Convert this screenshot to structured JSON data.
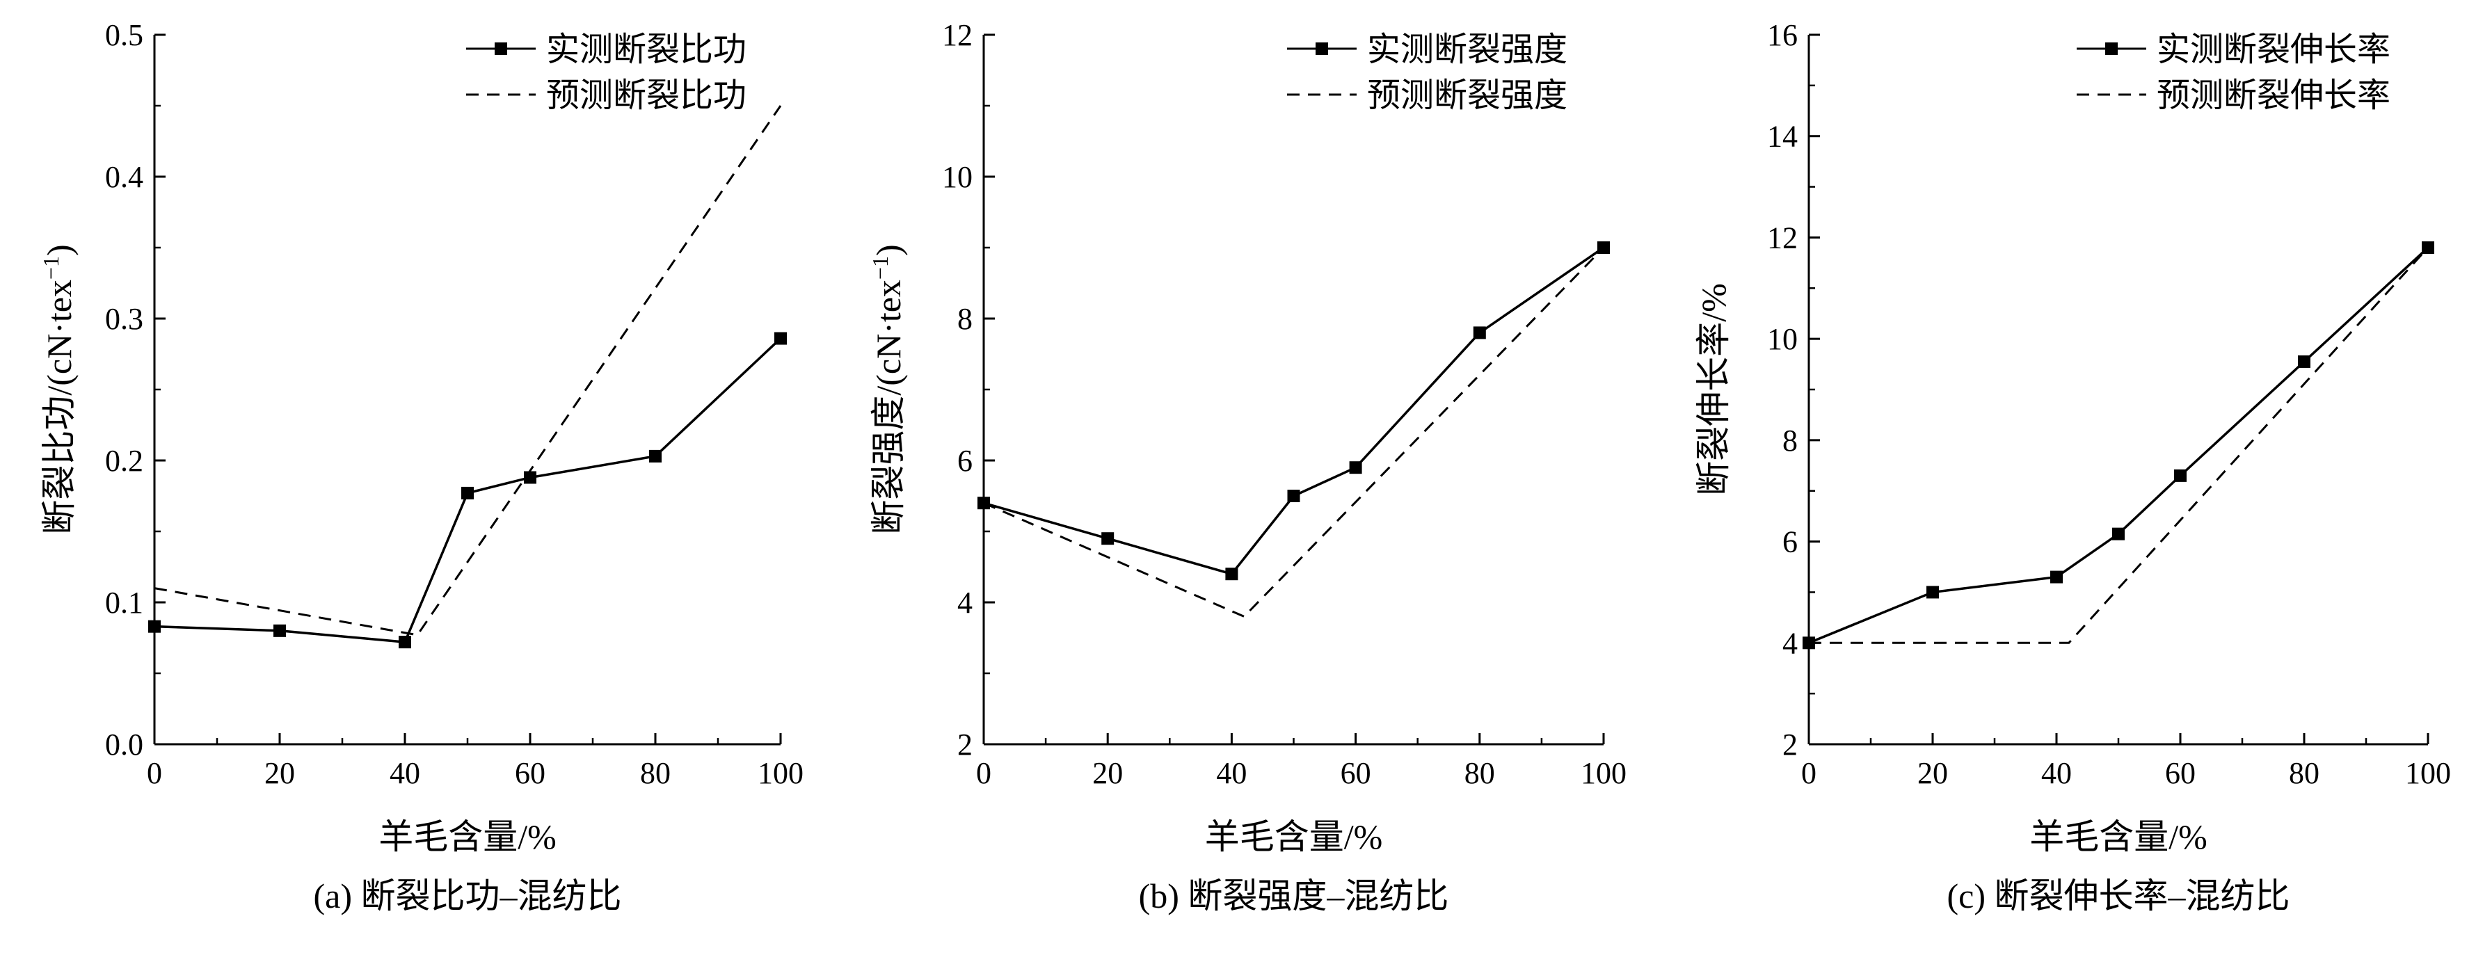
{
  "chart_data": [
    {
      "type": "line",
      "caption": "(a) 断裂比功–混纺比",
      "xlabel": "羊毛含量/%",
      "ylabel": "断裂比功/(cN·tex",
      "ylabel_sup": "−1",
      "ylabel_close": ")",
      "xlim": [
        0,
        100
      ],
      "ylim": [
        0.0,
        0.5
      ],
      "xticks": [
        0,
        20,
        40,
        60,
        80,
        100
      ],
      "yticks": [
        0.0,
        0.1,
        0.2,
        0.3,
        0.4,
        0.5
      ],
      "ytick_labels": [
        "0.0",
        "0.1",
        "0.2",
        "0.3",
        "0.4",
        "0.5"
      ],
      "legend_position": "top-right",
      "series": [
        {
          "name": "实测断裂比功",
          "style": "solid-square",
          "x": [
            0,
            20,
            40,
            50,
            60,
            80,
            100
          ],
          "y": [
            0.083,
            0.08,
            0.072,
            0.177,
            0.188,
            0.203,
            0.286
          ]
        },
        {
          "name": "预测断裂比功",
          "style": "dashed",
          "x": [
            0,
            42,
            100
          ],
          "y": [
            0.11,
            0.077,
            0.45
          ]
        }
      ]
    },
    {
      "type": "line",
      "caption": "(b) 断裂强度–混纺比",
      "xlabel": "羊毛含量/%",
      "ylabel": "断裂强度/(cN·tex",
      "ylabel_sup": "−1",
      "ylabel_close": ")",
      "xlim": [
        0,
        100
      ],
      "ylim": [
        2,
        12
      ],
      "xticks": [
        0,
        20,
        40,
        60,
        80,
        100
      ],
      "yticks": [
        2,
        4,
        6,
        8,
        10,
        12
      ],
      "ytick_labels": [
        "2",
        "4",
        "6",
        "8",
        "10",
        "12"
      ],
      "legend_position": "top-right",
      "series": [
        {
          "name": "实测断裂强度",
          "style": "solid-square",
          "x": [
            0,
            20,
            40,
            50,
            60,
            80,
            100
          ],
          "y": [
            5.4,
            4.9,
            4.4,
            5.5,
            5.9,
            7.8,
            9.0
          ]
        },
        {
          "name": "预测断裂强度",
          "style": "dashed",
          "x": [
            0,
            42,
            100
          ],
          "y": [
            5.4,
            3.8,
            9.0
          ]
        }
      ]
    },
    {
      "type": "line",
      "caption": "(c) 断裂伸长率–混纺比",
      "xlabel": "羊毛含量/%",
      "ylabel": "断裂伸长率/%",
      "ylabel_sup": "",
      "ylabel_close": "",
      "xlim": [
        0,
        100
      ],
      "ylim": [
        2,
        16
      ],
      "xticks": [
        0,
        20,
        40,
        60,
        80,
        100
      ],
      "yticks": [
        2,
        4,
        6,
        8,
        10,
        12,
        14,
        16
      ],
      "ytick_labels": [
        "2",
        "4",
        "6",
        "8",
        "10",
        "12",
        "14",
        "16"
      ],
      "legend_position": "top-right",
      "series": [
        {
          "name": "实测断裂伸长率",
          "style": "solid-square",
          "x": [
            0,
            20,
            40,
            50,
            60,
            80,
            100
          ],
          "y": [
            4.0,
            5.0,
            5.3,
            6.15,
            7.3,
            9.55,
            11.8
          ]
        },
        {
          "name": "预测断裂伸长率",
          "style": "dashed",
          "x": [
            0,
            42,
            100
          ],
          "y": [
            4.0,
            4.0,
            11.8
          ]
        }
      ]
    }
  ]
}
